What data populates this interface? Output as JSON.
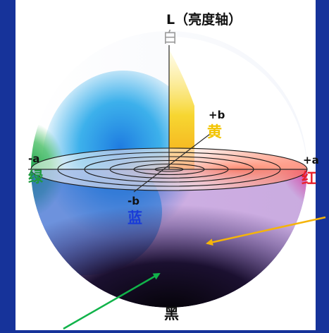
{
  "axis_title": "L（亮度轴）",
  "labels": {
    "white": "白",
    "black": "黑",
    "plus_b": "+b",
    "yellow": "黄",
    "minus_a": "-a",
    "green": "绿",
    "plus_a": "+a",
    "red": "红",
    "minus_b": "-b",
    "blue": "蓝"
  },
  "colors": {
    "background": "#16339a",
    "panel": "#ffffff",
    "yellow_label": "#f2c400",
    "green_label": "#1f9a3f",
    "red_label": "#e8202a",
    "blue_label": "#1a3cd8",
    "orange_arrow": "#f5b40a",
    "green_arrow": "#11b34a"
  }
}
